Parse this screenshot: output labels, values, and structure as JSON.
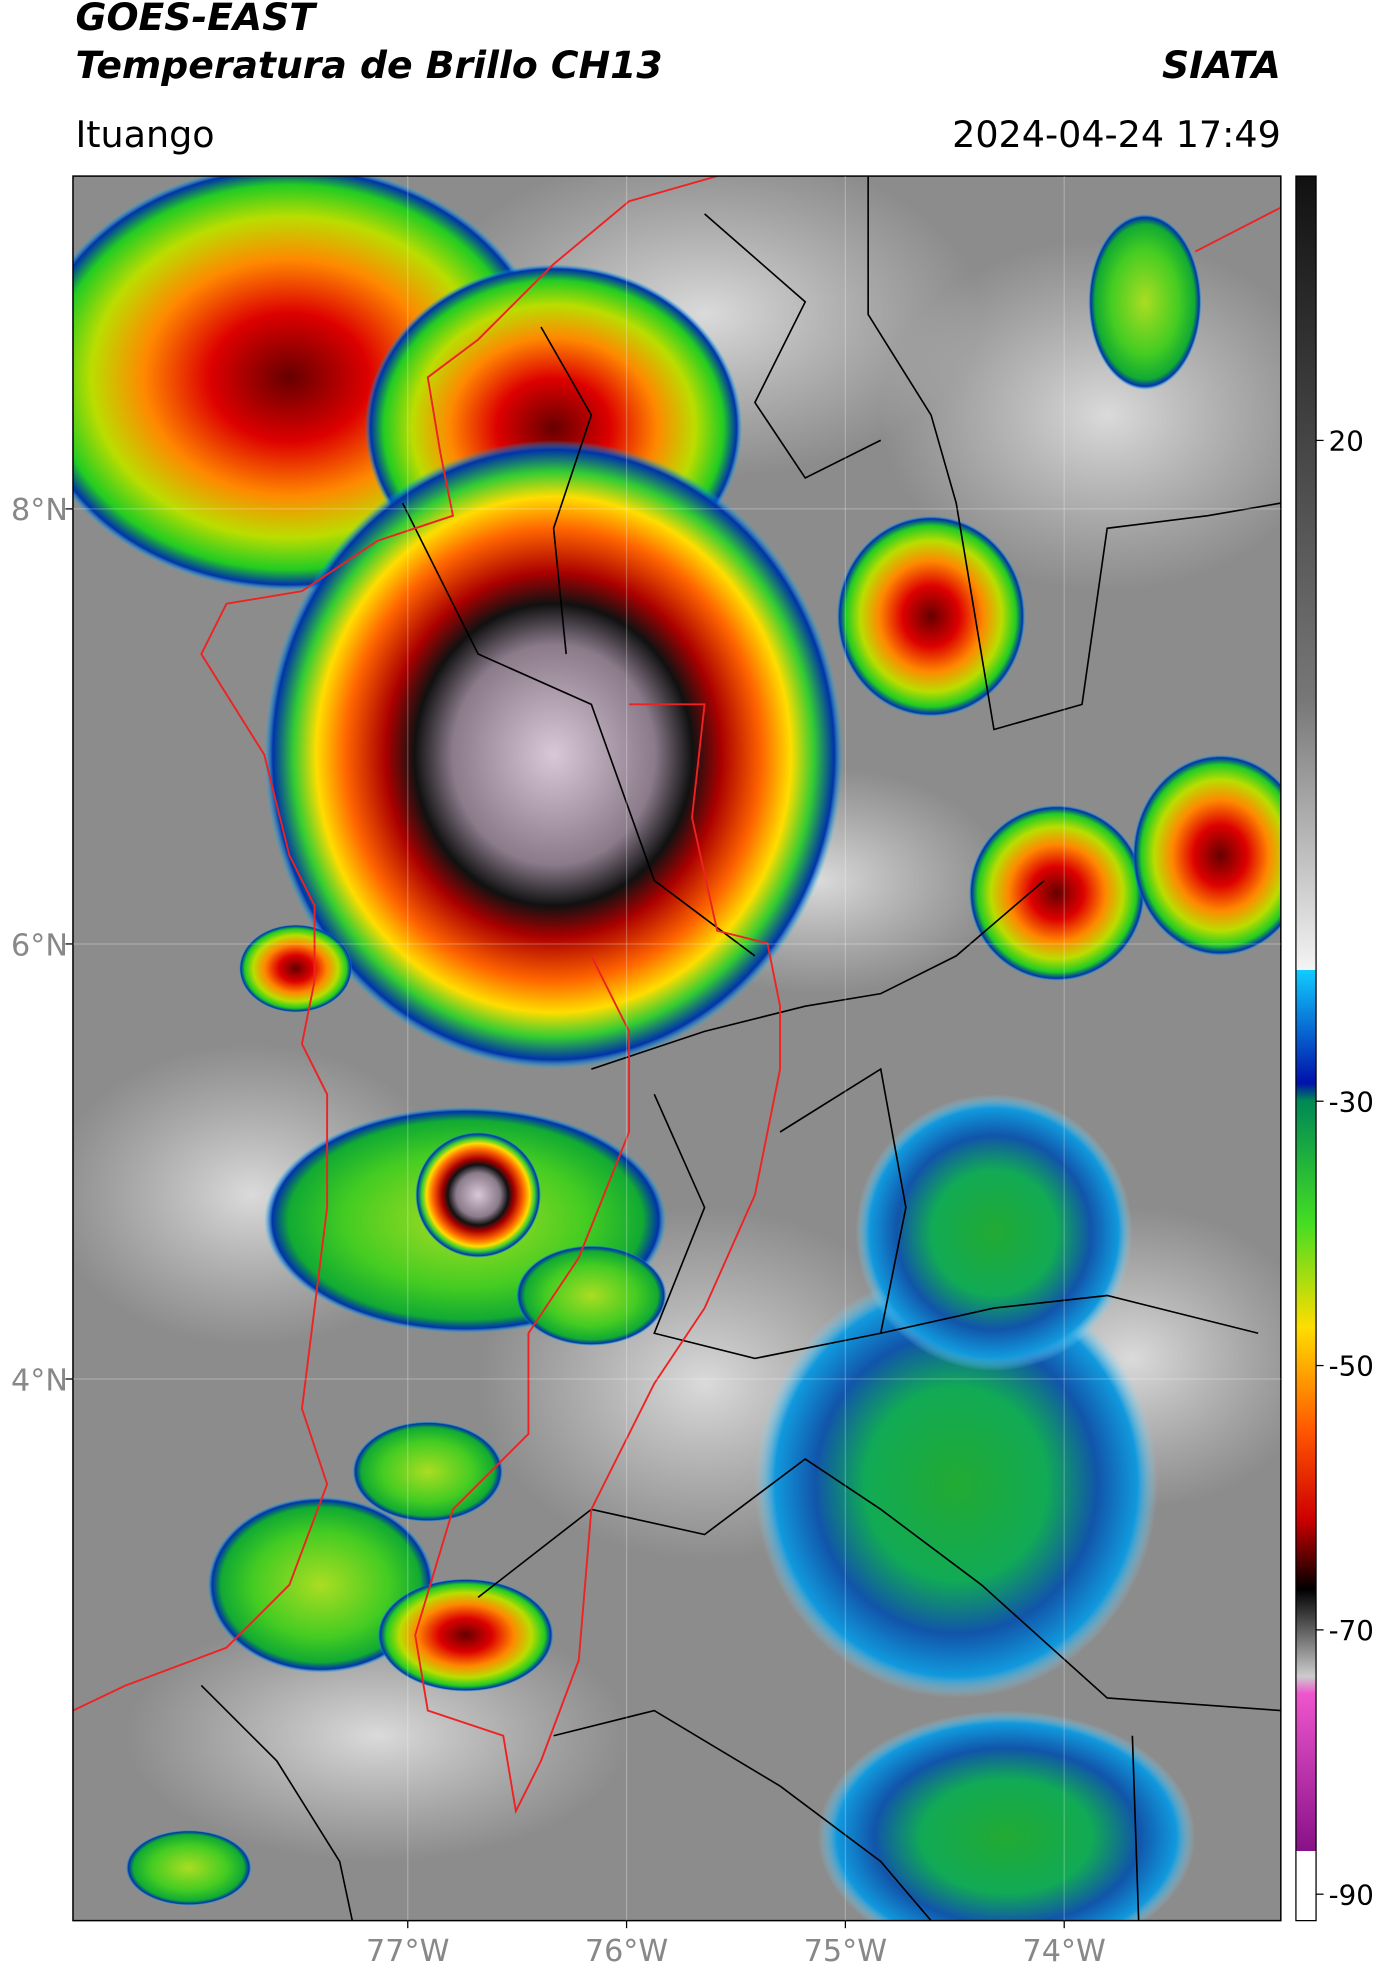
{
  "header": {
    "title": "GOES-EAST",
    "subtitle": "Temperatura de Brillo CH13",
    "agency": "SIATA",
    "location": "Ituango",
    "timestamp": "2024-04-24 17:49"
  },
  "map": {
    "xlim": [
      -78.53,
      -73.01
    ],
    "ylim": [
      1.51,
      9.53
    ],
    "xticks": [
      {
        "value": -77,
        "label": "77°W"
      },
      {
        "value": -76,
        "label": "76°W"
      },
      {
        "value": -75,
        "label": "75°W"
      },
      {
        "value": -74,
        "label": "74°W"
      }
    ],
    "yticks": [
      {
        "value": 4,
        "label": "4°N"
      },
      {
        "value": 6,
        "label": "6°N"
      },
      {
        "value": 8,
        "label": "8°N"
      }
    ]
  },
  "colorbar": {
    "lim": [
      -92,
      40
    ],
    "ticks": [
      20,
      -30,
      -50,
      -70,
      -90
    ]
  }
}
